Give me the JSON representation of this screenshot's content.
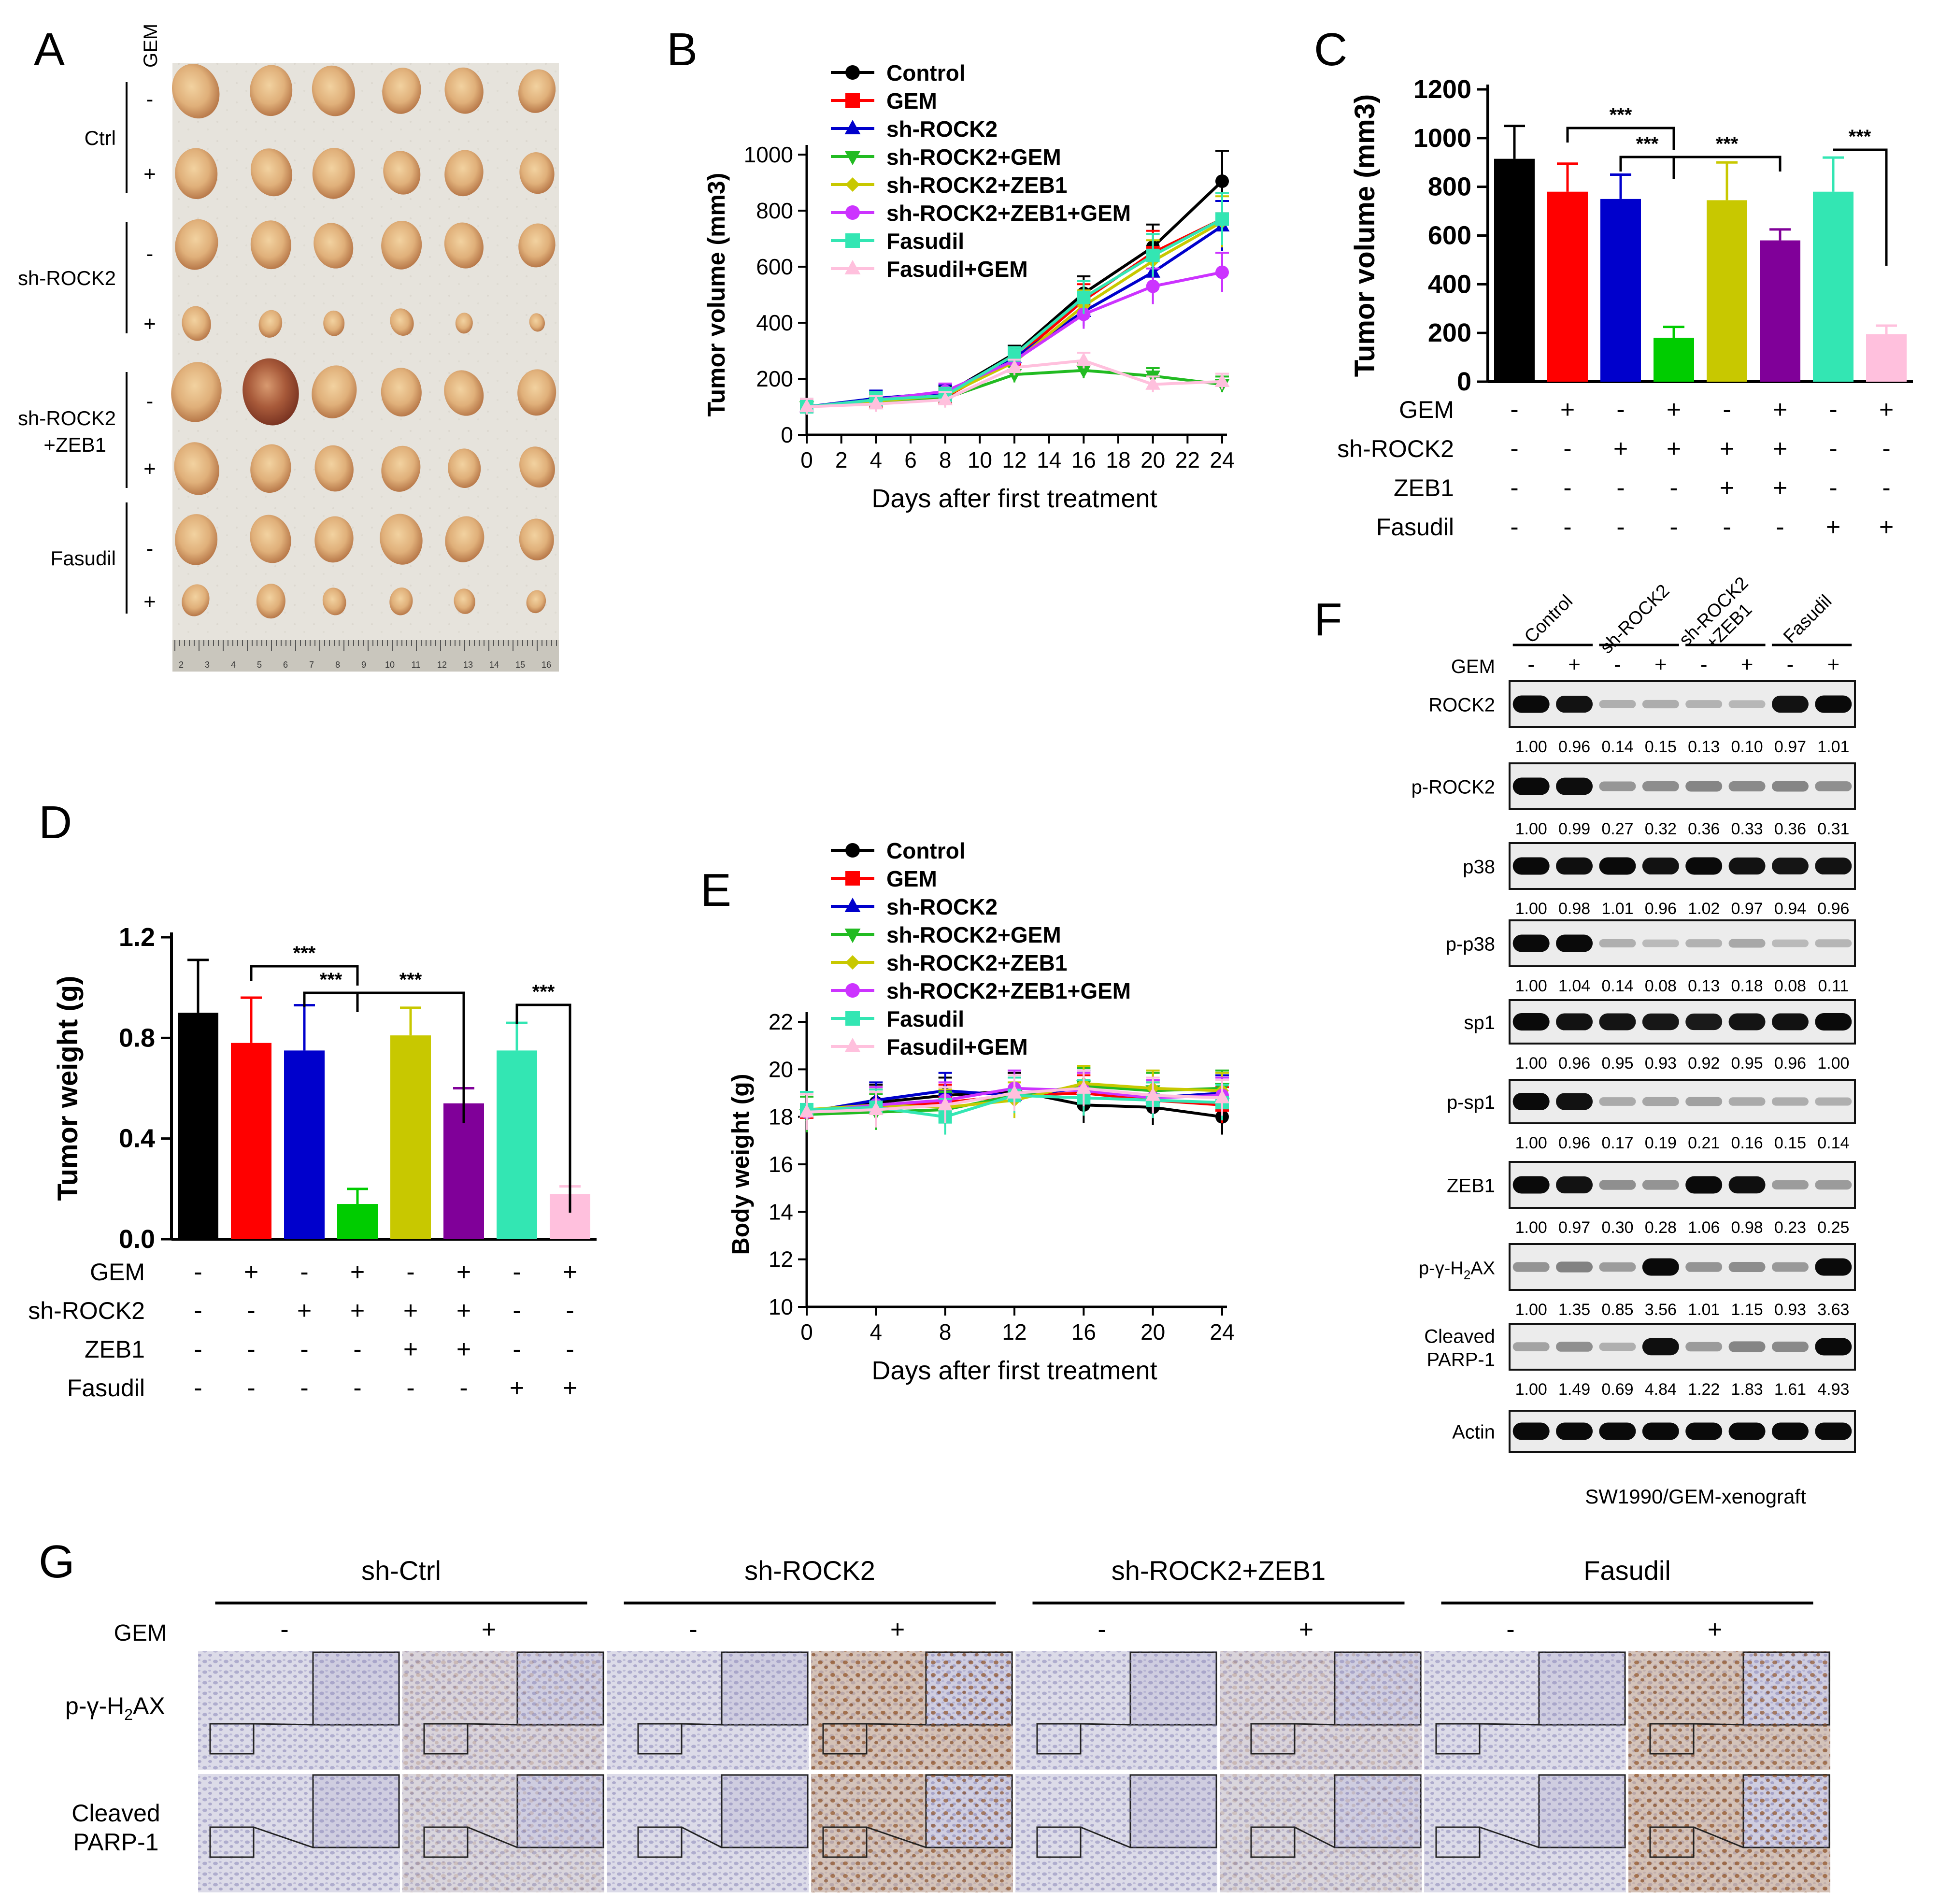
{
  "colors": {
    "black": "#000000",
    "red": "#ff0000",
    "blue": "#0000cc",
    "green": "#00cc00",
    "olive": "#c8c800",
    "violet": "#cc33ff",
    "purple": "#800099",
    "mint": "#33e6b3",
    "pink": "#ffc0dd",
    "lineGreen": "#22bb22"
  },
  "panel_letters": {
    "a": "A",
    "b": "B",
    "c": "C",
    "d": "D",
    "e": "E",
    "f": "F",
    "g": "G"
  },
  "common": {
    "plus": "+",
    "minus": "-",
    "sig": "***",
    "gem": "GEM",
    "shrock2": "sh-ROCK2",
    "zeb1": "ZEB1",
    "fasudil": "Fasudil"
  },
  "panel_a": {
    "gem_header": "GEM",
    "groups": [
      "Ctrl",
      "sh-ROCK2",
      "sh-ROCK2\n+ZEB1",
      "Fasudil"
    ],
    "group_line1": [
      "Ctrl",
      "sh-ROCK2",
      "sh-ROCK2",
      "Fasudil"
    ],
    "group_line2": [
      "",
      "",
      "+ZEB1",
      ""
    ],
    "ruler_ticks": [
      "2",
      "3",
      "4",
      "5",
      "6",
      "7",
      "8",
      "9",
      "10",
      "11",
      "12",
      "13",
      "14",
      "15",
      "16"
    ]
  },
  "chart_data": [
    {
      "id": "B",
      "type": "line",
      "ylabel": "Tumor volume (mm3)",
      "xlabel": "Days after first treatment",
      "xlim": [
        0,
        24
      ],
      "ylim": [
        0,
        1000
      ],
      "xticks": [
        0,
        2,
        4,
        6,
        8,
        10,
        12,
        14,
        16,
        18,
        20,
        22,
        24
      ],
      "yticks": [
        0,
        200,
        400,
        600,
        800,
        1000
      ],
      "x": [
        0,
        4,
        8,
        12,
        16,
        20,
        24
      ],
      "series": [
        {
          "name": "Control",
          "values": [
            100,
            125,
            145,
            290,
            505,
            670,
            905
          ]
        },
        {
          "name": "GEM",
          "values": [
            100,
            120,
            135,
            270,
            480,
            650,
            770
          ]
        },
        {
          "name": "sh-ROCK2",
          "values": [
            100,
            130,
            150,
            275,
            440,
            580,
            745
          ]
        },
        {
          "name": "sh-ROCK2+GEM",
          "values": [
            100,
            115,
            130,
            215,
            230,
            210,
            180
          ]
        },
        {
          "name": "sh-ROCK2+ZEB1",
          "values": [
            100,
            120,
            140,
            260,
            460,
            620,
            760
          ]
        },
        {
          "name": "sh-ROCK2+ZEB1+GEM",
          "values": [
            100,
            125,
            155,
            265,
            430,
            530,
            580
          ]
        },
        {
          "name": "Fasudil",
          "values": [
            100,
            125,
            140,
            285,
            490,
            640,
            770
          ]
        },
        {
          "name": "Fasudil+GEM",
          "values": [
            100,
            110,
            125,
            240,
            265,
            180,
            190
          ]
        }
      ]
    },
    {
      "id": "C",
      "type": "bar",
      "ylabel": "Tumor volume (mm3)",
      "ylim": [
        0,
        1200
      ],
      "yticks": [
        0,
        200,
        400,
        600,
        800,
        1000,
        1200
      ],
      "values": [
        915,
        780,
        750,
        180,
        745,
        580,
        780,
        195
      ],
      "errors": [
        135,
        115,
        100,
        45,
        155,
        45,
        140,
        35
      ],
      "signs": {
        "GEM": [
          "-",
          "+",
          "-",
          "+",
          "-",
          "+",
          "-",
          "+"
        ],
        "sh-ROCK2": [
          "-",
          "-",
          "+",
          "+",
          "+",
          "+",
          "-",
          "-"
        ],
        "ZEB1": [
          "-",
          "-",
          "-",
          "-",
          "+",
          "+",
          "-",
          "-"
        ],
        "Fasudil": [
          "-",
          "-",
          "-",
          "-",
          "-",
          "-",
          "+",
          "+"
        ]
      },
      "significance": [
        "***",
        "***",
        "***",
        "***"
      ]
    },
    {
      "id": "D",
      "type": "bar",
      "ylabel": "Tumor weight (g)",
      "ylim": [
        0,
        1.2
      ],
      "yticks": [
        "0.0",
        "0.4",
        "0.8",
        "1.2"
      ],
      "values": [
        0.9,
        0.78,
        0.75,
        0.14,
        0.81,
        0.54,
        0.75,
        0.18
      ],
      "errors": [
        0.21,
        0.18,
        0.18,
        0.06,
        0.11,
        0.06,
        0.11,
        0.03
      ],
      "signs": {
        "GEM": [
          "-",
          "+",
          "-",
          "+",
          "-",
          "+",
          "-",
          "+"
        ],
        "sh-ROCK2": [
          "-",
          "-",
          "+",
          "+",
          "+",
          "+",
          "-",
          "-"
        ],
        "ZEB1": [
          "-",
          "-",
          "-",
          "-",
          "+",
          "+",
          "-",
          "-"
        ],
        "Fasudil": [
          "-",
          "-",
          "-",
          "-",
          "-",
          "-",
          "+",
          "+"
        ]
      },
      "significance": [
        "***",
        "***",
        "***",
        "***"
      ]
    },
    {
      "id": "E",
      "type": "line",
      "ylabel": "Body weight (g)",
      "xlabel": "Days after first treatment",
      "xlim": [
        0,
        24
      ],
      "ylim": [
        10,
        22
      ],
      "xticks": [
        0,
        4,
        8,
        12,
        16,
        20,
        24
      ],
      "yticks": [
        10,
        12,
        14,
        16,
        18,
        20,
        22
      ],
      "x": [
        0,
        4,
        8,
        12,
        16,
        20,
        24
      ],
      "series": [
        {
          "name": "Control",
          "values": [
            18.2,
            18.6,
            18.9,
            19.1,
            18.5,
            18.4,
            18.0
          ]
        },
        {
          "name": "GEM",
          "values": [
            18.2,
            18.4,
            18.6,
            18.9,
            19.0,
            18.7,
            18.5
          ]
        },
        {
          "name": "sh-ROCK2",
          "values": [
            18.2,
            18.7,
            19.1,
            18.9,
            19.2,
            18.8,
            19.0
          ]
        },
        {
          "name": "sh-ROCK2+GEM",
          "values": [
            18.1,
            18.2,
            18.3,
            18.9,
            19.3,
            19.1,
            19.2
          ]
        },
        {
          "name": "sh-ROCK2+ZEB1",
          "values": [
            18.3,
            18.5,
            18.4,
            18.7,
            19.4,
            19.2,
            19.1
          ]
        },
        {
          "name": "sh-ROCK2+ZEB1+GEM",
          "values": [
            18.2,
            18.5,
            18.7,
            19.2,
            19.1,
            18.8,
            18.9
          ]
        },
        {
          "name": "Fasudil",
          "values": [
            18.3,
            18.4,
            18.0,
            18.9,
            18.8,
            18.7,
            18.6
          ]
        },
        {
          "name": "Fasudil+GEM",
          "values": [
            18.2,
            18.3,
            18.5,
            19.0,
            19.2,
            18.9,
            18.8
          ]
        }
      ]
    }
  ],
  "panel_f": {
    "groups": [
      "Control",
      "sh-ROCK2",
      "sh-ROCK2\n+ZEB1",
      "Fasudil"
    ],
    "gem_label": "GEM",
    "gem_signs": [
      "-",
      "+",
      "-",
      "+",
      "-",
      "+",
      "-",
      "+"
    ],
    "footer": "SW1990/GEM-xenograft",
    "rows": [
      {
        "label": "ROCK2",
        "quant": [
          "1.00",
          "0.96",
          "0.14",
          "0.15",
          "0.13",
          "0.10",
          "0.97",
          "1.01"
        ],
        "intensity": [
          1.0,
          0.96,
          0.14,
          0.15,
          0.13,
          0.1,
          0.97,
          1.01
        ]
      },
      {
        "label": "p-ROCK2",
        "quant": [
          "1.00",
          "0.99",
          "0.27",
          "0.32",
          "0.36",
          "0.33",
          "0.36",
          "0.31"
        ],
        "intensity": [
          1.0,
          0.99,
          0.27,
          0.32,
          0.36,
          0.33,
          0.36,
          0.31
        ]
      },
      {
        "label": "p38",
        "quant": [
          "1.00",
          "0.98",
          "1.01",
          "0.96",
          "1.02",
          "0.97",
          "0.94",
          "0.96"
        ],
        "intensity": [
          1.0,
          0.98,
          1.01,
          0.96,
          1.02,
          0.97,
          0.94,
          0.96
        ]
      },
      {
        "label": "p-p38",
        "quant": [
          "1.00",
          "1.04",
          "0.14",
          "0.08",
          "0.13",
          "0.18",
          "0.08",
          "0.11"
        ],
        "intensity": [
          1.0,
          1.04,
          0.14,
          0.08,
          0.13,
          0.18,
          0.08,
          0.11
        ]
      },
      {
        "label": "sp1",
        "quant": [
          "1.00",
          "0.96",
          "0.95",
          "0.93",
          "0.92",
          "0.95",
          "0.96",
          "1.00"
        ],
        "intensity": [
          1.0,
          0.96,
          0.95,
          0.93,
          0.92,
          0.95,
          0.96,
          1.0
        ]
      },
      {
        "label": "p-sp1",
        "quant": [
          "1.00",
          "0.96",
          "0.17",
          "0.19",
          "0.21",
          "0.16",
          "0.15",
          "0.14"
        ],
        "intensity": [
          1.0,
          0.96,
          0.17,
          0.19,
          0.21,
          0.16,
          0.15,
          0.14
        ]
      },
      {
        "label": "ZEB1",
        "quant": [
          "1.00",
          "0.97",
          "0.30",
          "0.28",
          "1.06",
          "0.98",
          "0.23",
          "0.25"
        ],
        "intensity": [
          1.0,
          0.97,
          0.3,
          0.28,
          1.06,
          0.98,
          0.23,
          0.25
        ]
      },
      {
        "label": "p-γ-H2AX",
        "quant": [
          "1.00",
          "1.35",
          "0.85",
          "3.56",
          "1.01",
          "1.15",
          "0.93",
          "3.63"
        ],
        "intensity": [
          0.28,
          0.38,
          0.24,
          1.0,
          0.28,
          0.32,
          0.26,
          1.0
        ]
      },
      {
        "label": "Cleaved\nPARP-1",
        "quant": [
          "1.00",
          "1.49",
          "0.69",
          "4.84",
          "1.22",
          "1.83",
          "1.61",
          "4.93"
        ],
        "intensity": [
          0.2,
          0.3,
          0.14,
          0.98,
          0.25,
          0.37,
          0.33,
          1.0
        ]
      },
      {
        "label": "Actin",
        "quant": [],
        "intensity": [
          1,
          1,
          1,
          1,
          1,
          1,
          1,
          1
        ]
      }
    ]
  },
  "panel_g": {
    "groups": [
      "sh-Ctrl",
      "sh-ROCK2",
      "sh-ROCK2+ZEB1",
      "Fasudil"
    ],
    "gem_label": "GEM",
    "gem_signs": [
      "-",
      "+",
      "-",
      "+",
      "-",
      "+",
      "-",
      "+"
    ],
    "rows": [
      "p-γ-H2AX",
      "Cleaved\nPARP-1"
    ],
    "staining": [
      [
        0.05,
        0.25,
        0.1,
        0.9,
        0.05,
        0.25,
        0.1,
        0.85
      ],
      [
        0.05,
        0.2,
        0.05,
        0.85,
        0.05,
        0.2,
        0.1,
        0.9
      ]
    ]
  }
}
